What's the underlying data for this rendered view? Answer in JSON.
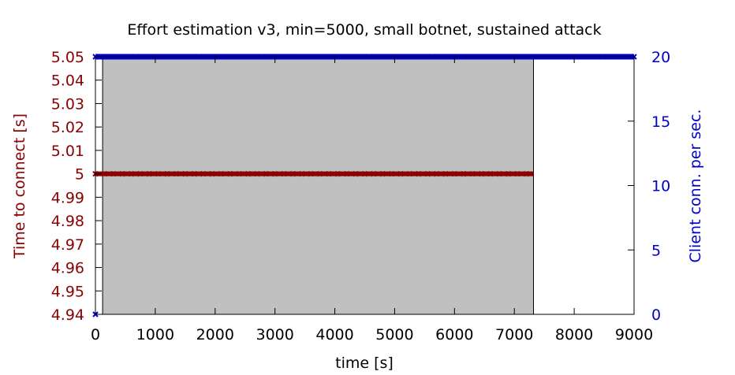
{
  "chart_data": {
    "type": "line",
    "title": "Effort estimation v3, min=5000, small botnet, sustained attack",
    "xlabel": "time [s]",
    "ylabel_left": "Time to connect [s]",
    "ylabel_right": "Client conn. per sec.",
    "xlim": [
      0,
      9000
    ],
    "ylim_left": [
      4.94,
      5.05
    ],
    "ylim_right": [
      0,
      20
    ],
    "x_ticks": [
      "0",
      "1000",
      "2000",
      "3000",
      "4000",
      "5000",
      "6000",
      "7000",
      "8000",
      "9000"
    ],
    "y_left_ticks": [
      "4.94",
      "4.95",
      "4.96",
      "4.97",
      "4.98",
      "4.99",
      "5",
      "5.01",
      "5.02",
      "5.03",
      "5.04",
      "5.05"
    ],
    "y_right_ticks": [
      "0",
      "5",
      "10",
      "15",
      "20"
    ],
    "attack_period": {
      "start": 120,
      "end": 7320,
      "color": "#c0c0c0"
    },
    "series": [
      {
        "axis": "left",
        "color": "#8b0000",
        "x": [
          0,
          7320
        ],
        "y": [
          5.0,
          5.0
        ]
      },
      {
        "axis": "right",
        "color": "#0000cc",
        "x": [
          0,
          9000
        ],
        "y": [
          20,
          20
        ]
      }
    ],
    "markers": [
      {
        "axis": "right",
        "color": "#0000cc",
        "x": 0,
        "y": 0
      }
    ],
    "grid": false
  }
}
